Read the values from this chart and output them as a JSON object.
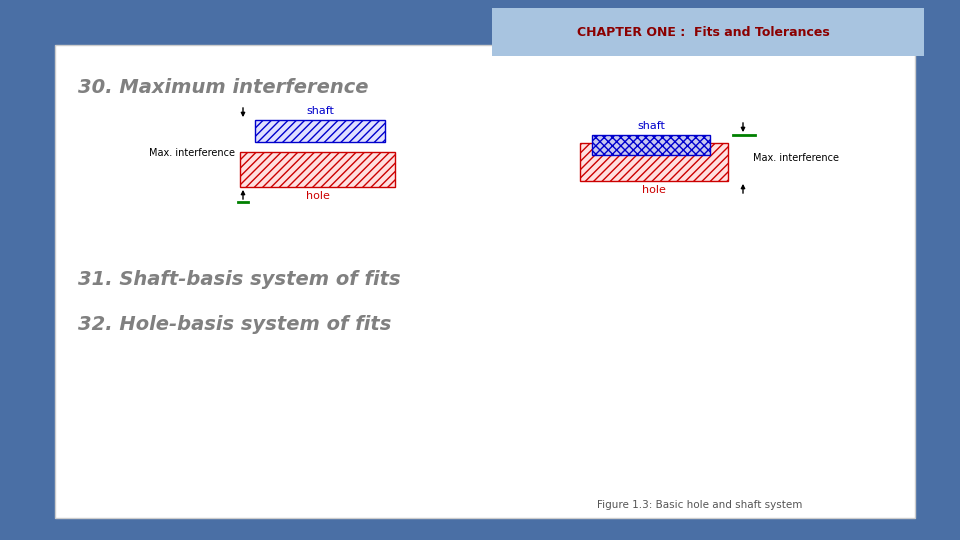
{
  "bg_outer": "#4a6fa5",
  "bg_inner": "#ffffff",
  "header_bg": "#a8c4e0",
  "header_text_plain": "CHAPTER ONE :  ",
  "header_text_bold": "Fits and Tolerances",
  "title30": "30. Maximum interference",
  "title31": "31. Shaft-basis system of fits",
  "title32": "32. Hole-basis system of fits",
  "fig_caption": "Figure 1.3: Basic hole and shaft system",
  "text_color_main": "#808080",
  "text_color_blue": "#0000cc",
  "text_color_red": "#cc0000",
  "text_color_green": "#008000",
  "shaft_label": "shaft",
  "hole_label": "hole",
  "max_int_label": "Max. interference",
  "shaft_hatch_color": "#0000cc",
  "shaft_face_color": "#e0e0ff",
  "hole_hatch_color": "#cc0000",
  "hole_face_color": "#ffe0e0",
  "header_plain_color": "#8B0000",
  "header_bold_color": "#00008B"
}
